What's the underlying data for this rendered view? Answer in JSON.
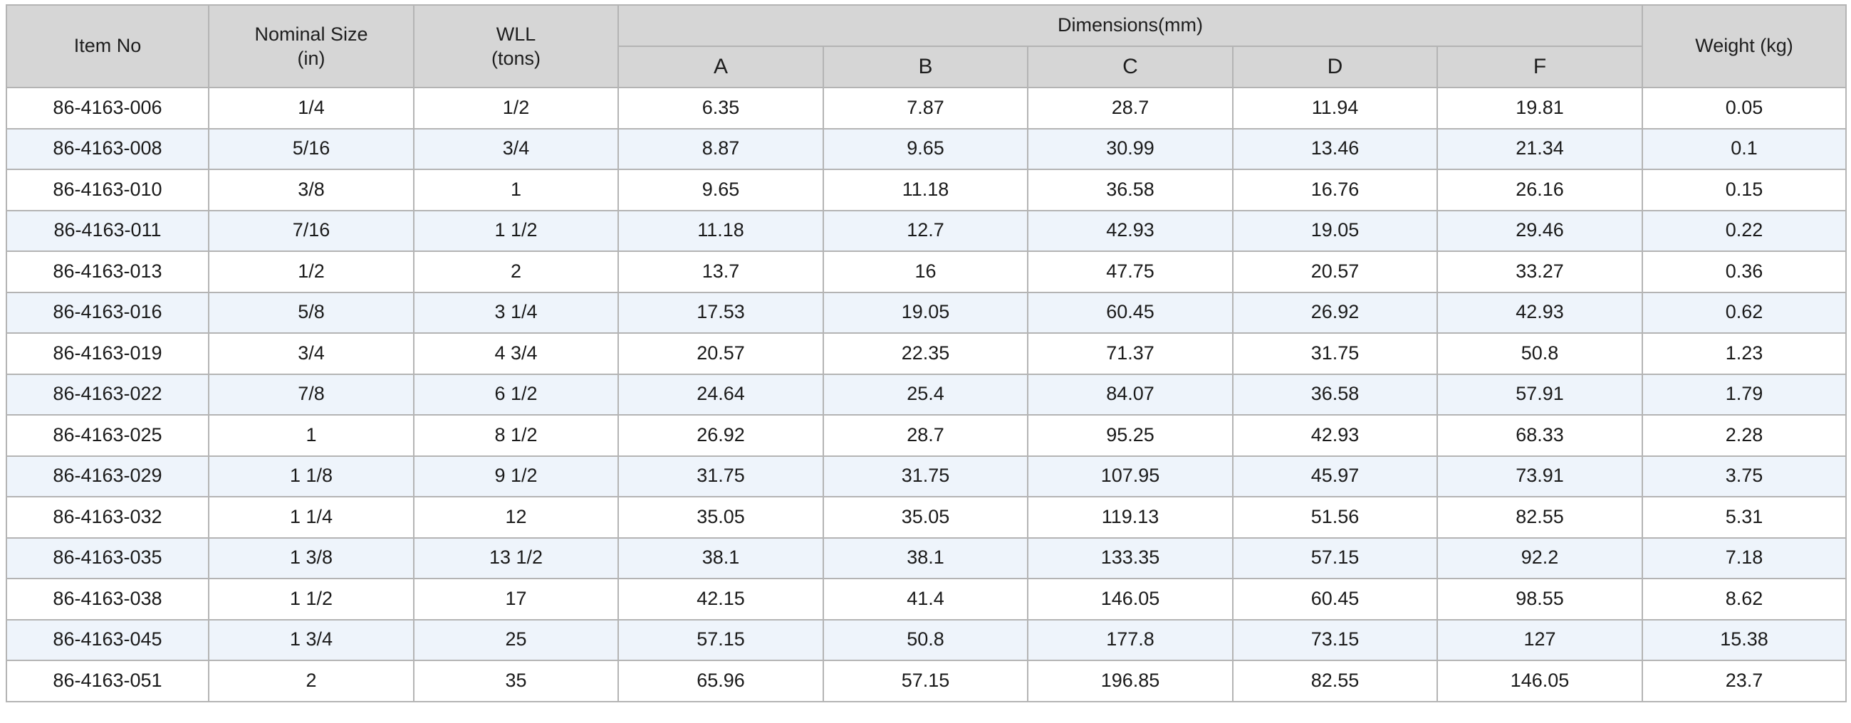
{
  "table": {
    "headers": {
      "item_no": "Item No",
      "nominal_size": "Nominal Size",
      "nominal_size_unit": "(in)",
      "wll": "WLL",
      "wll_unit": "(tons)",
      "dimensions": "Dimensions(mm)",
      "dim_a": "A",
      "dim_b": "B",
      "dim_c": "C",
      "dim_d": "D",
      "dim_f": "F",
      "weight": "Weight (kg)"
    },
    "rows": [
      [
        "86-4163-006",
        "1/4",
        "1/2",
        "6.35",
        "7.87",
        "28.7",
        "11.94",
        "19.81",
        "0.05"
      ],
      [
        "86-4163-008",
        "5/16",
        "3/4",
        "8.87",
        "9.65",
        "30.99",
        "13.46",
        "21.34",
        "0.1"
      ],
      [
        "86-4163-010",
        "3/8",
        "1",
        "9.65",
        "11.18",
        "36.58",
        "16.76",
        "26.16",
        "0.15"
      ],
      [
        "86-4163-011",
        "7/16",
        "1 1/2",
        "11.18",
        "12.7",
        "42.93",
        "19.05",
        "29.46",
        "0.22"
      ],
      [
        "86-4163-013",
        "1/2",
        "2",
        "13.7",
        "16",
        "47.75",
        "20.57",
        "33.27",
        "0.36"
      ],
      [
        "86-4163-016",
        "5/8",
        "3 1/4",
        "17.53",
        "19.05",
        "60.45",
        "26.92",
        "42.93",
        "0.62"
      ],
      [
        "86-4163-019",
        "3/4",
        "4 3/4",
        "20.57",
        "22.35",
        "71.37",
        "31.75",
        "50.8",
        "1.23"
      ],
      [
        "86-4163-022",
        "7/8",
        "6 1/2",
        "24.64",
        "25.4",
        "84.07",
        "36.58",
        "57.91",
        "1.79"
      ],
      [
        "86-4163-025",
        "1",
        "8 1/2",
        "26.92",
        "28.7",
        "95.25",
        "42.93",
        "68.33",
        "2.28"
      ],
      [
        "86-4163-029",
        "1 1/8",
        "9 1/2",
        "31.75",
        "31.75",
        "107.95",
        "45.97",
        "73.91",
        "3.75"
      ],
      [
        "86-4163-032",
        "1 1/4",
        "12",
        "35.05",
        "35.05",
        "119.13",
        "51.56",
        "82.55",
        "5.31"
      ],
      [
        "86-4163-035",
        "1 3/8",
        "13 1/2",
        "38.1",
        "38.1",
        "133.35",
        "57.15",
        "92.2",
        "7.18"
      ],
      [
        "86-4163-038",
        "1 1/2",
        "17",
        "42.15",
        "41.4",
        "146.05",
        "60.45",
        "98.55",
        "8.62"
      ],
      [
        "86-4163-045",
        "1 3/4",
        "25",
        "57.15",
        "50.8",
        "177.8",
        "73.15",
        "127",
        "15.38"
      ],
      [
        "86-4163-051",
        "2",
        "35",
        "65.96",
        "57.15",
        "196.85",
        "82.55",
        "146.05",
        "23.7"
      ]
    ]
  }
}
